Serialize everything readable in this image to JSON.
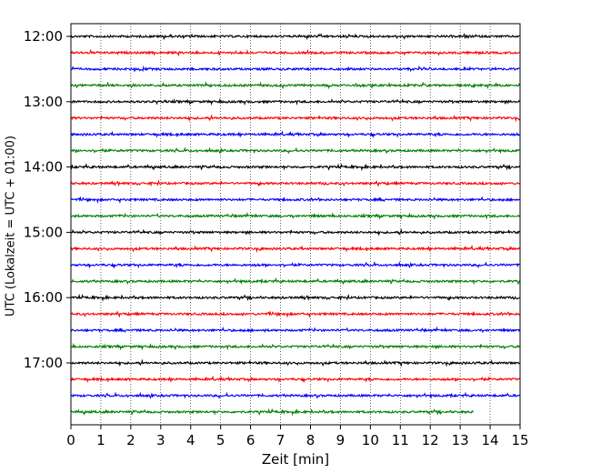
{
  "chart_data": {
    "type": "line",
    "title": "",
    "xlabel": "Zeit  [min]",
    "ylabel": "UTC (Lokalzeit = UTC + 01:00)",
    "xlim": [
      0,
      15
    ],
    "x_ticks": [
      "0",
      "1",
      "2",
      "3",
      "4",
      "5",
      "6",
      "7",
      "8",
      "9",
      "10",
      "11",
      "12",
      "13",
      "14",
      "15"
    ],
    "y_ticks": [
      "12:00",
      "13:00",
      "14:00",
      "15:00",
      "16:00",
      "17:00"
    ],
    "y_tick_offsets": [
      0,
      4,
      8,
      12,
      16,
      20
    ],
    "grid": "x-dotted",
    "trace_colors": [
      "#000000",
      "#ff0000",
      "#0000ff",
      "#007f00"
    ],
    "traces": [
      {
        "start": "12:00",
        "end_min": 15
      },
      {
        "start": "12:15",
        "end_min": 15
      },
      {
        "start": "12:30",
        "end_min": 15
      },
      {
        "start": "12:45",
        "end_min": 15
      },
      {
        "start": "13:00",
        "end_min": 15
      },
      {
        "start": "13:15",
        "end_min": 15
      },
      {
        "start": "13:30",
        "end_min": 15
      },
      {
        "start": "13:45",
        "end_min": 15
      },
      {
        "start": "14:00",
        "end_min": 15
      },
      {
        "start": "14:15",
        "end_min": 15
      },
      {
        "start": "14:30",
        "end_min": 15
      },
      {
        "start": "14:45",
        "end_min": 15
      },
      {
        "start": "15:00",
        "end_min": 15
      },
      {
        "start": "15:15",
        "end_min": 15
      },
      {
        "start": "15:30",
        "end_min": 15
      },
      {
        "start": "15:45",
        "end_min": 15
      },
      {
        "start": "16:00",
        "end_min": 15
      },
      {
        "start": "16:15",
        "end_min": 15
      },
      {
        "start": "16:30",
        "end_min": 15
      },
      {
        "start": "16:45",
        "end_min": 15
      },
      {
        "start": "17:00",
        "end_min": 15
      },
      {
        "start": "17:15",
        "end_min": 15
      },
      {
        "start": "17:30",
        "end_min": 15
      },
      {
        "start": "17:45",
        "end_min": 13.45
      }
    ]
  }
}
